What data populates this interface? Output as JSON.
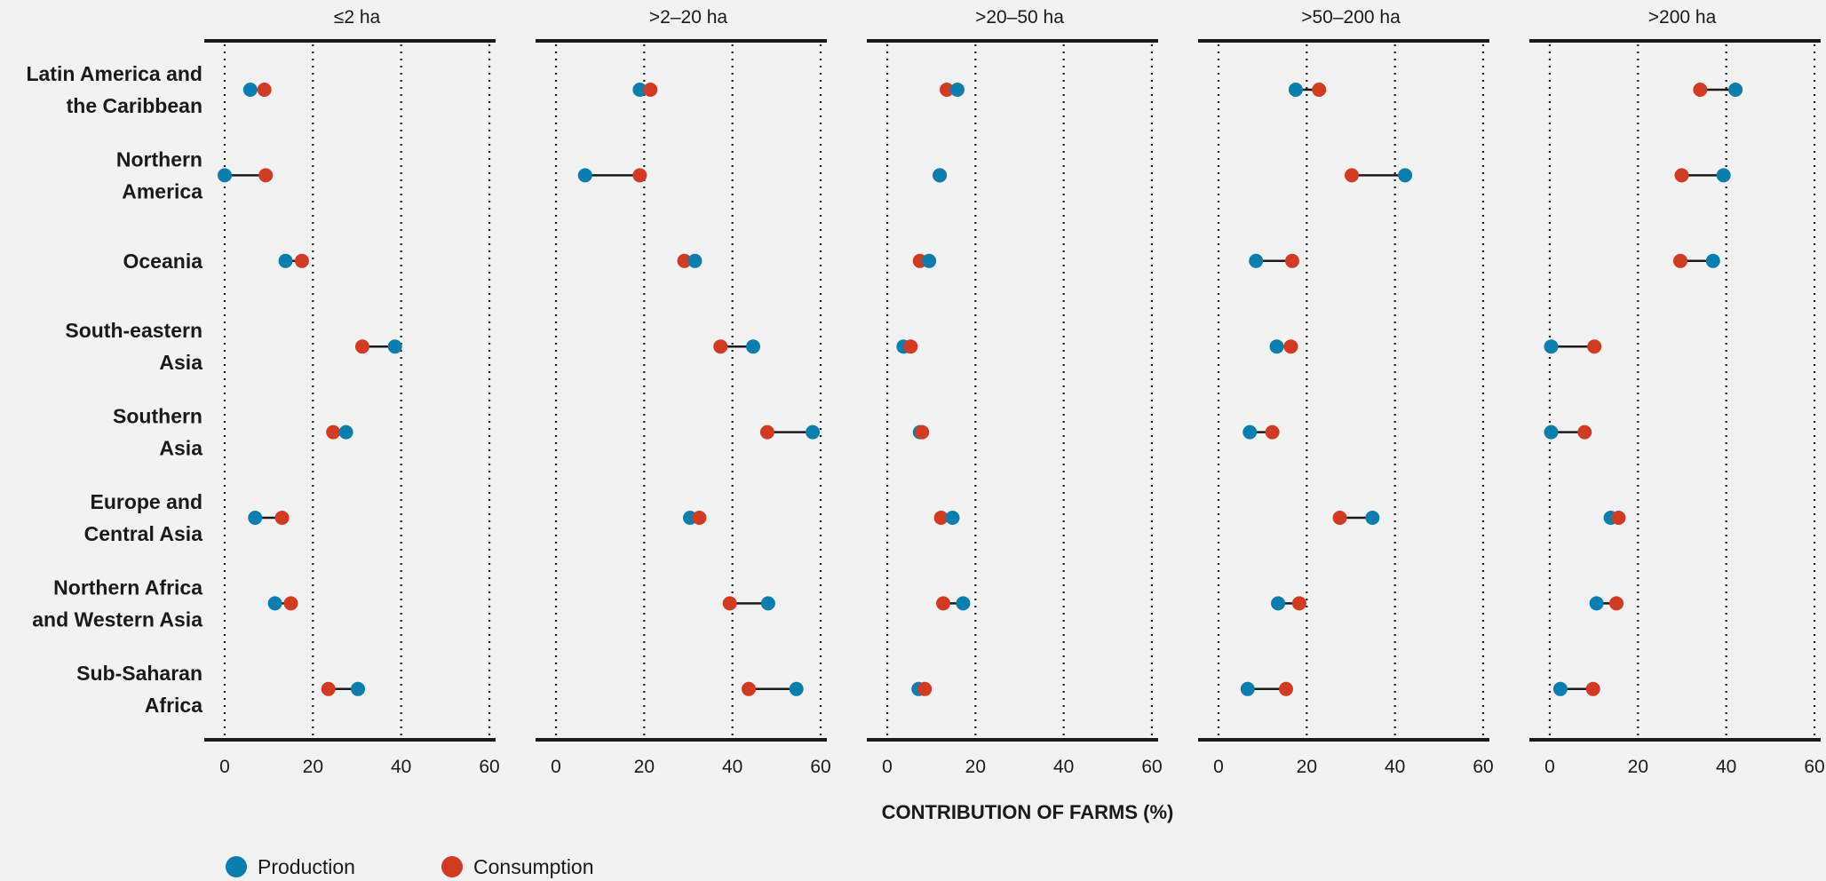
{
  "chart_data": {
    "type": "dot-plot",
    "xlabel": "CONTRIBUTION OF FARMS (%)",
    "xlim": [
      0,
      60
    ],
    "xticks": [
      0,
      20,
      40,
      60
    ],
    "grid": "vertical dotted",
    "legend_placement": "bottom-left",
    "colors": {
      "Production": "#0a7eaf",
      "Consumption": "#d33a22"
    },
    "legend": [
      "Production",
      "Consumption"
    ],
    "regions": [
      [
        "Latin America and",
        "the Caribbean"
      ],
      [
        "Northern",
        "America"
      ],
      [
        "Oceania"
      ],
      [
        "South-eastern",
        "Asia"
      ],
      [
        "Southern",
        "Asia"
      ],
      [
        "Europe and",
        "Central Asia"
      ],
      [
        "Northern Africa",
        "and Western Asia"
      ],
      [
        "Sub-Saharan",
        "Africa"
      ]
    ],
    "panels": [
      {
        "title": "≤2 ha",
        "production": [
          5.8,
          0,
          13.8,
          38.6,
          27.5,
          6.9,
          11.4,
          30.2
        ],
        "consumption": [
          9.0,
          9.3,
          17.5,
          31.2,
          24.6,
          13.0,
          15.0,
          23.5
        ]
      },
      {
        "title": ">2–20 ha",
        "production": [
          19.0,
          6.6,
          31.5,
          44.7,
          58.2,
          30.4,
          48.1,
          54.5
        ],
        "consumption": [
          21.4,
          19.0,
          29.1,
          37.3,
          47.9,
          32.5,
          39.4,
          43.7
        ]
      },
      {
        "title": ">20–50 ha",
        "production": [
          15.9,
          11.9,
          9.5,
          3.7,
          7.4,
          14.8,
          17.2,
          7.1
        ],
        "consumption": [
          13.5,
          11.9,
          7.4,
          5.3,
          7.9,
          12.2,
          12.7,
          8.5
        ]
      },
      {
        "title": ">50–200 ha",
        "production": [
          17.5,
          42.3,
          8.5,
          13.2,
          7.1,
          34.9,
          13.5,
          6.6
        ],
        "consumption": [
          22.8,
          30.2,
          16.7,
          16.4,
          12.2,
          27.5,
          18.3,
          15.3
        ]
      },
      {
        "title": ">200 ha",
        "production": [
          42.1,
          39.4,
          37.0,
          0.3,
          0.3,
          13.8,
          10.6,
          2.4
        ],
        "consumption": [
          34.1,
          29.9,
          29.6,
          10.1,
          7.9,
          15.6,
          15.1,
          9.8
        ]
      }
    ]
  }
}
